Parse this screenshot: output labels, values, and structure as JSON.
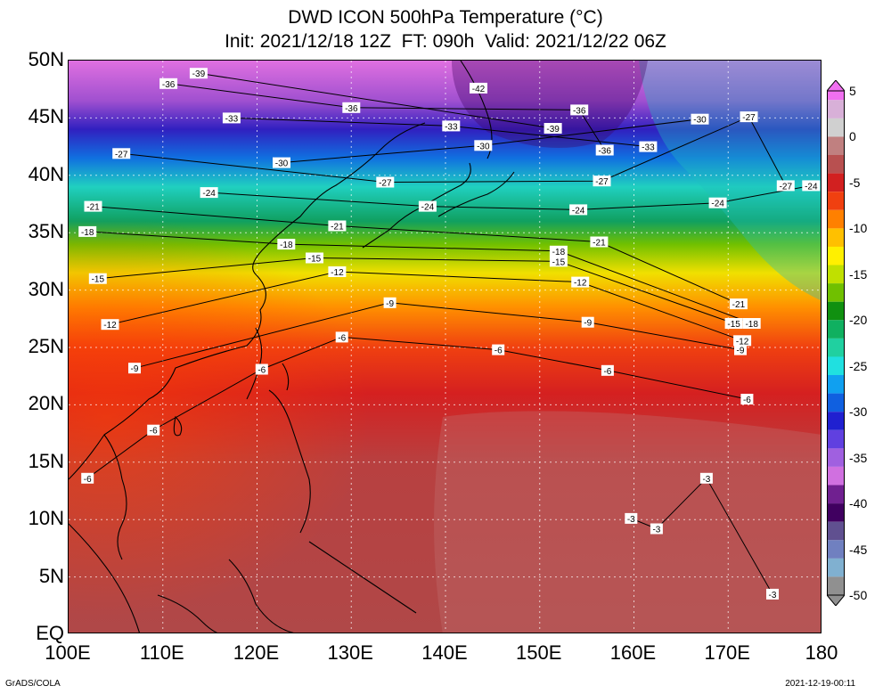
{
  "title": {
    "line1": "DWD ICON 500hPa Temperature (°C)",
    "line2": "Init: 2021/12/18 12Z  FT: 090h  Valid: 2021/12/22 06Z"
  },
  "axes": {
    "lat_labels": [
      "50N",
      "45N",
      "40N",
      "35N",
      "30N",
      "25N",
      "20N",
      "15N",
      "10N",
      "5N",
      "EQ"
    ],
    "lat_values": [
      50,
      45,
      40,
      35,
      30,
      25,
      20,
      15,
      10,
      5,
      0
    ],
    "lon_labels": [
      "100E",
      "110E",
      "120E",
      "130E",
      "140E",
      "150E",
      "160E",
      "170E",
      "180"
    ],
    "lon_values": [
      100,
      110,
      120,
      130,
      140,
      150,
      160,
      170,
      180
    ]
  },
  "colorbar": {
    "labels": [
      "5",
      "0",
      "-5",
      "-10",
      "-15",
      "-20",
      "-25",
      "-30",
      "-35",
      "-40",
      "-45",
      "-50"
    ],
    "values": [
      5,
      0,
      -5,
      -10,
      -15,
      -20,
      -25,
      -30,
      -35,
      -40,
      -45,
      -50
    ],
    "colors": [
      {
        "value": 5,
        "color": "#f070f0"
      },
      {
        "value": 3,
        "color": "#d8b0d8"
      },
      {
        "value": 1,
        "color": "#d0d0d0"
      },
      {
        "value": -1,
        "color": "#c08080"
      },
      {
        "value": -3,
        "color": "#b85050"
      },
      {
        "value": -5,
        "color": "#d22020"
      },
      {
        "value": -7,
        "color": "#f04010"
      },
      {
        "value": -9,
        "color": "#ff8000"
      },
      {
        "value": -11,
        "color": "#ffc000"
      },
      {
        "value": -13,
        "color": "#fff000"
      },
      {
        "value": -15,
        "color": "#c0e000"
      },
      {
        "value": -17,
        "color": "#70c000"
      },
      {
        "value": -19,
        "color": "#109010"
      },
      {
        "value": -21,
        "color": "#10b060"
      },
      {
        "value": -23,
        "color": "#20d0a0"
      },
      {
        "value": -25,
        "color": "#20e0e0"
      },
      {
        "value": -27,
        "color": "#10a0f0"
      },
      {
        "value": -29,
        "color": "#1060e0"
      },
      {
        "value": -31,
        "color": "#2020d0"
      },
      {
        "value": -33,
        "color": "#6040e0"
      },
      {
        "value": -35,
        "color": "#a060e0"
      },
      {
        "value": -37,
        "color": "#d070e0"
      },
      {
        "value": -39,
        "color": "#702090"
      },
      {
        "value": -41,
        "color": "#400060"
      },
      {
        "value": -43,
        "color": "#605090"
      },
      {
        "value": -45,
        "color": "#7080c0"
      },
      {
        "value": -47,
        "color": "#80b0d0"
      },
      {
        "value": -49,
        "color": "#909090"
      }
    ]
  },
  "contour_labels": [
    {
      "text": "-39",
      "lon": 113.8,
      "lat": 48.9
    },
    {
      "text": "-36",
      "lon": 110.6,
      "lat": 48.0
    },
    {
      "text": "-42",
      "lon": 143.5,
      "lat": 47.6
    },
    {
      "text": "-36",
      "lon": 130.0,
      "lat": 45.9
    },
    {
      "text": "-33",
      "lon": 117.3,
      "lat": 45.0
    },
    {
      "text": "-33",
      "lon": 140.6,
      "lat": 44.3
    },
    {
      "text": "-39",
      "lon": 151.4,
      "lat": 44.1
    },
    {
      "text": "-36",
      "lon": 154.2,
      "lat": 45.7
    },
    {
      "text": "-30",
      "lon": 167.0,
      "lat": 44.9
    },
    {
      "text": "-27",
      "lon": 172.2,
      "lat": 45.1
    },
    {
      "text": "-30",
      "lon": 144.0,
      "lat": 42.6
    },
    {
      "text": "-36",
      "lon": 156.9,
      "lat": 42.2
    },
    {
      "text": "-33",
      "lon": 161.5,
      "lat": 42.5
    },
    {
      "text": "-27",
      "lon": 105.6,
      "lat": 41.9
    },
    {
      "text": "-30",
      "lon": 122.6,
      "lat": 41.1
    },
    {
      "text": "-27",
      "lon": 133.6,
      "lat": 39.4
    },
    {
      "text": "-27",
      "lon": 156.6,
      "lat": 39.5
    },
    {
      "text": "-27",
      "lon": 176.1,
      "lat": 39.1
    },
    {
      "text": "-24",
      "lon": 178.8,
      "lat": 39.1
    },
    {
      "text": "-24",
      "lon": 114.9,
      "lat": 38.5
    },
    {
      "text": "-24",
      "lon": 168.9,
      "lat": 37.6
    },
    {
      "text": "-24",
      "lon": 138.1,
      "lat": 37.3
    },
    {
      "text": "-24",
      "lon": 154.1,
      "lat": 37.0
    },
    {
      "text": "-21",
      "lon": 102.6,
      "lat": 37.3
    },
    {
      "text": "-21",
      "lon": 128.5,
      "lat": 35.6
    },
    {
      "text": "-21",
      "lon": 156.3,
      "lat": 34.2
    },
    {
      "text": "-18",
      "lon": 102.0,
      "lat": 35.1
    },
    {
      "text": "-18",
      "lon": 123.1,
      "lat": 34.0
    },
    {
      "text": "-18",
      "lon": 152.0,
      "lat": 33.4
    },
    {
      "text": "-15",
      "lon": 126.1,
      "lat": 32.8
    },
    {
      "text": "-15",
      "lon": 152.0,
      "lat": 32.5
    },
    {
      "text": "-12",
      "lon": 128.5,
      "lat": 31.6
    },
    {
      "text": "-12",
      "lon": 154.3,
      "lat": 30.7
    },
    {
      "text": "-15",
      "lon": 103.1,
      "lat": 31.0
    },
    {
      "text": "-21",
      "lon": 171.1,
      "lat": 28.8
    },
    {
      "text": "-15",
      "lon": 170.6,
      "lat": 27.1
    },
    {
      "text": "-18",
      "lon": 172.5,
      "lat": 27.1
    },
    {
      "text": "-12",
      "lon": 104.4,
      "lat": 27.0
    },
    {
      "text": "-9",
      "lon": 134.1,
      "lat": 28.9
    },
    {
      "text": "-9",
      "lon": 155.1,
      "lat": 27.2
    },
    {
      "text": "-12",
      "lon": 171.5,
      "lat": 25.6
    },
    {
      "text": "-9",
      "lon": 171.3,
      "lat": 24.8
    },
    {
      "text": "-6",
      "lon": 129.0,
      "lat": 25.9
    },
    {
      "text": "-6",
      "lon": 145.6,
      "lat": 24.8
    },
    {
      "text": "-9",
      "lon": 107.0,
      "lat": 23.2
    },
    {
      "text": "-6",
      "lon": 120.5,
      "lat": 23.1
    },
    {
      "text": "-6",
      "lon": 157.2,
      "lat": 23.0
    },
    {
      "text": "-6",
      "lon": 172.0,
      "lat": 20.5
    },
    {
      "text": "-6",
      "lon": 109.0,
      "lat": 17.8
    },
    {
      "text": "-6",
      "lon": 102.0,
      "lat": 13.6
    },
    {
      "text": "-3",
      "lon": 167.7,
      "lat": 13.6
    },
    {
      "text": "-3",
      "lon": 159.7,
      "lat": 10.1
    },
    {
      "text": "-3",
      "lon": 162.4,
      "lat": 9.2
    },
    {
      "text": "-3",
      "lon": 174.7,
      "lat": 3.5
    }
  ],
  "footer": {
    "left": "GrADS/COLA",
    "right": "2021-12-19-00:11"
  }
}
